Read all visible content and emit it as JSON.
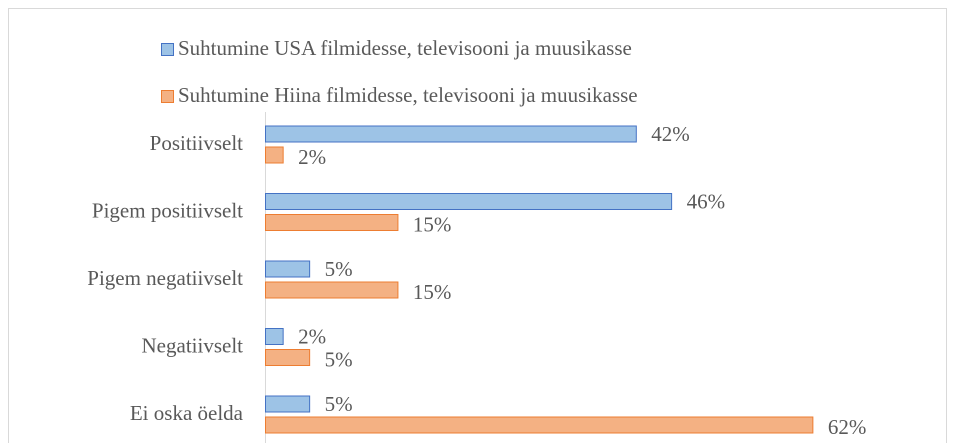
{
  "chart_data": {
    "type": "bar",
    "orientation": "horizontal",
    "categories": [
      "Positiivselt",
      "Pigem positiivselt",
      "Pigem negatiivselt",
      "Negatiivselt",
      "Ei oska öelda"
    ],
    "series": [
      {
        "name": "Suhtumine USA filmidesse, televisooni ja muusikasse",
        "color": "#4472c4",
        "fill": "#9dc3e6",
        "values": [
          42,
          46,
          5,
          2,
          5
        ],
        "value_labels": [
          "42%",
          "46%",
          "5%",
          "2%",
          "5%"
        ]
      },
      {
        "name": "Suhtumine Hiina filmidesse, televisooni ja muusikasse",
        "color": "#ed7d31",
        "fill": "#f4b183",
        "values": [
          2,
          15,
          15,
          5,
          62
        ],
        "value_labels": [
          "2%",
          "15%",
          "15%",
          "5%",
          "62%"
        ]
      }
    ],
    "xlim": [
      0,
      70
    ],
    "legend": "top"
  }
}
